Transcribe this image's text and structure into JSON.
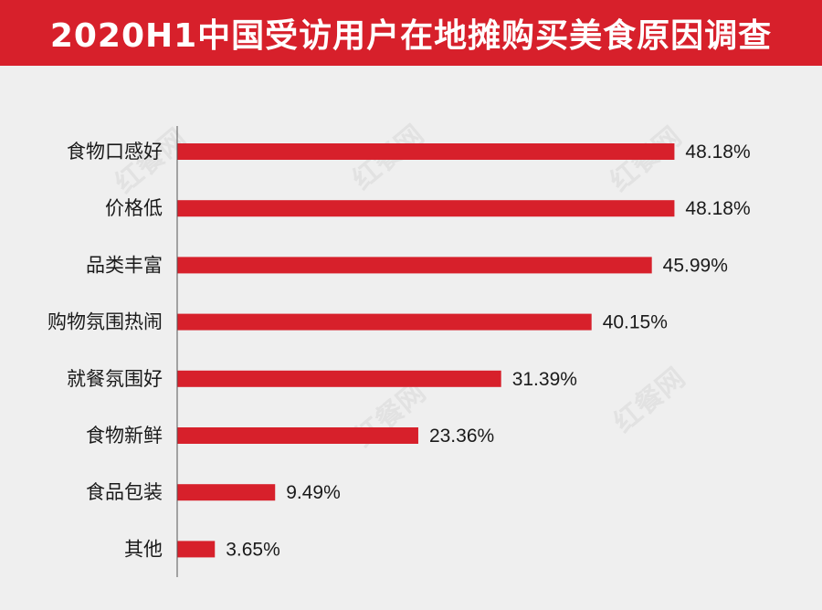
{
  "header": {
    "title": "2020H1中国受访用户在地摊购买美食原因调查"
  },
  "watermark": {
    "text": "红餐网"
  },
  "colors": {
    "bar": "#d7202b",
    "header_bg": "#d7202b",
    "background": "#efefef",
    "axis": "#555555"
  },
  "chart_data": {
    "type": "bar",
    "orientation": "horizontal",
    "title": "2020H1中国受访用户在地摊购买美食原因调查",
    "categories": [
      "食物口感好",
      "价格低",
      "品类丰富",
      "购物氛围热闹",
      "就餐氛围好",
      "食物新鲜",
      "食品包装",
      "其他"
    ],
    "values": [
      48.18,
      48.18,
      45.99,
      40.15,
      31.39,
      23.36,
      9.49,
      3.65
    ],
    "value_labels": [
      "48.18%",
      "48.18%",
      "45.99%",
      "40.15%",
      "31.39%",
      "23.36%",
      "9.49%",
      "3.65%"
    ],
    "unit": "%",
    "xlim": [
      0,
      50
    ],
    "grid": false,
    "legend": "none"
  }
}
